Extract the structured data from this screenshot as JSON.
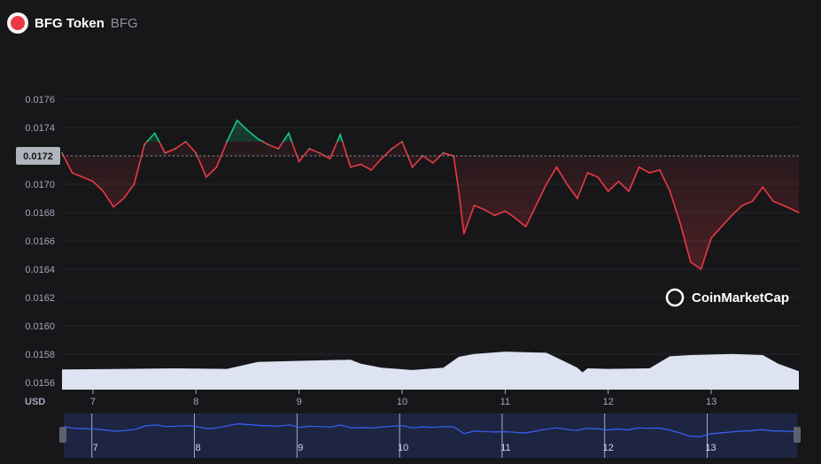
{
  "header": {
    "name": "BFG Token",
    "symbol": "BFG"
  },
  "watermark": "CoinMarketCap",
  "currency_label": "USD",
  "colors": {
    "up": "#16c784",
    "down": "#ea3943",
    "volume": "#dde3f0",
    "nav_line": "#3861fb",
    "nav_bg": "#1e2542",
    "background": "#17171a"
  },
  "chart_data": {
    "type": "line",
    "title": "",
    "xlabel": "USD",
    "ylabel": "",
    "ylim": [
      0.01555,
      0.01785
    ],
    "x_range": [
      6.7,
      13.85
    ],
    "baseline": 0.0172,
    "current_price_label": "0.0172",
    "y_ticks": [
      "0.0176",
      "0.0174",
      "0.0172",
      "0.0170",
      "0.0168",
      "0.0166",
      "0.0164",
      "0.0162",
      "0.0160",
      "0.0158",
      "0.0156"
    ],
    "x_ticks": [
      "7",
      "8",
      "9",
      "10",
      "11",
      "12",
      "13"
    ],
    "navigator_ticks": [
      "7",
      "8",
      "9",
      "10",
      "11",
      "12",
      "13"
    ],
    "price_series": {
      "name": "Price",
      "x": [
        6.7,
        6.8,
        6.9,
        7.0,
        7.1,
        7.2,
        7.3,
        7.4,
        7.5,
        7.6,
        7.7,
        7.8,
        7.9,
        8.0,
        8.1,
        8.2,
        8.3,
        8.4,
        8.5,
        8.6,
        8.7,
        8.8,
        8.9,
        9.0,
        9.1,
        9.2,
        9.3,
        9.4,
        9.5,
        9.6,
        9.7,
        9.8,
        9.9,
        10.0,
        10.1,
        10.2,
        10.3,
        10.4,
        10.5,
        10.55,
        10.6,
        10.7,
        10.8,
        10.9,
        11.0,
        11.1,
        11.2,
        11.3,
        11.4,
        11.5,
        11.6,
        11.7,
        11.8,
        11.9,
        12.0,
        12.1,
        12.2,
        12.3,
        12.4,
        12.5,
        12.6,
        12.7,
        12.8,
        12.9,
        13.0,
        13.1,
        13.2,
        13.3,
        13.4,
        13.5,
        13.6,
        13.7,
        13.85
      ],
      "values": [
        0.01722,
        0.01708,
        0.01705,
        0.01702,
        0.01695,
        0.01684,
        0.0169,
        0.017,
        0.01728,
        0.01736,
        0.01722,
        0.01725,
        0.0173,
        0.01722,
        0.01705,
        0.01712,
        0.0173,
        0.01745,
        0.01738,
        0.01732,
        0.01728,
        0.01725,
        0.01736,
        0.01716,
        0.01725,
        0.01722,
        0.01718,
        0.01735,
        0.01712,
        0.01714,
        0.0171,
        0.01718,
        0.01725,
        0.0173,
        0.01712,
        0.0172,
        0.01715,
        0.01722,
        0.0172,
        0.01695,
        0.01665,
        0.01685,
        0.01682,
        0.01678,
        0.01681,
        0.01676,
        0.0167,
        0.01685,
        0.017,
        0.01712,
        0.017,
        0.0169,
        0.01708,
        0.01705,
        0.01695,
        0.01702,
        0.01695,
        0.01712,
        0.01708,
        0.0171,
        0.01695,
        0.01672,
        0.01645,
        0.0164,
        0.01662,
        0.0167,
        0.01678,
        0.01685,
        0.01688,
        0.01698,
        0.01688,
        0.01685,
        0.0168
      ]
    },
    "volume_series": {
      "name": "Volume",
      "x": [
        6.7,
        7.3,
        7.8,
        8.3,
        8.6,
        9.0,
        9.5,
        9.6,
        9.8,
        10.1,
        10.4,
        10.55,
        10.7,
        11.0,
        11.2,
        11.4,
        11.6,
        11.7,
        11.75,
        11.8,
        12.0,
        12.4,
        12.6,
        12.8,
        13.2,
        13.5,
        13.65,
        13.85
      ],
      "values": [
        0.35,
        0.36,
        0.37,
        0.36,
        0.48,
        0.5,
        0.52,
        0.45,
        0.38,
        0.34,
        0.38,
        0.57,
        0.62,
        0.66,
        0.65,
        0.64,
        0.47,
        0.38,
        0.3,
        0.37,
        0.36,
        0.37,
        0.58,
        0.6,
        0.62,
        0.6,
        0.45,
        0.32
      ]
    }
  }
}
